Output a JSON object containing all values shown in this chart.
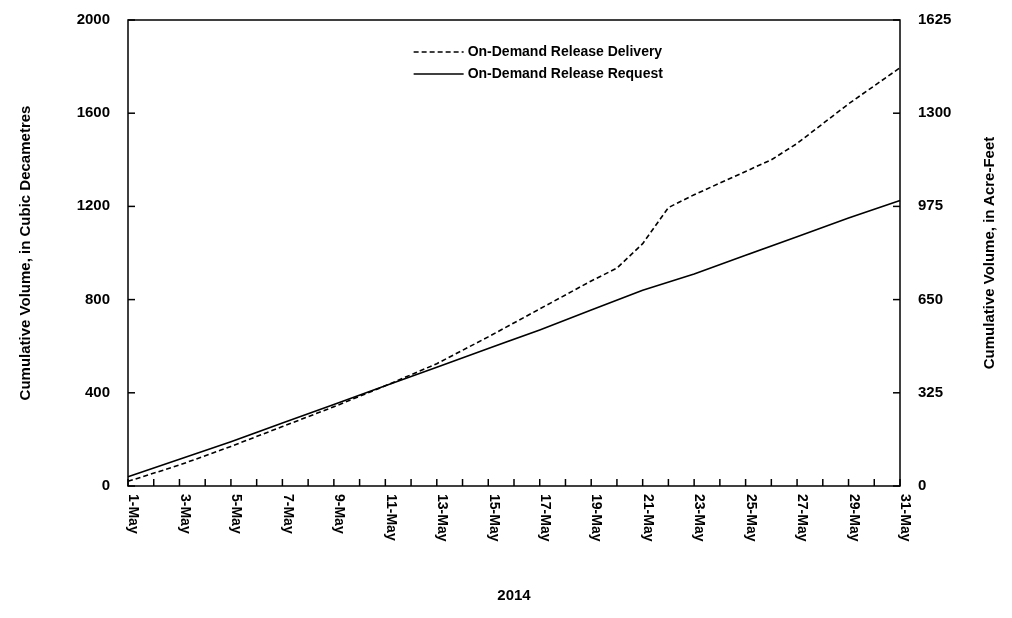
{
  "chart_data": {
    "type": "line",
    "xlabel": "2014",
    "ylabel": "Cumulative Volume, in Cubic Decametres",
    "y2label": "Cumulative Volume, in Acre-Feet",
    "xlim": [
      "2014-05-01",
      "2014-05-31"
    ],
    "xticks": [
      {
        "value": "2014-05-01",
        "label": "1-May"
      },
      {
        "value": "2014-05-02",
        "label": null
      },
      {
        "value": "2014-05-03",
        "label": "3-May"
      },
      {
        "value": "2014-05-04",
        "label": null
      },
      {
        "value": "2014-05-05",
        "label": "5-May"
      },
      {
        "value": "2014-05-06",
        "label": null
      },
      {
        "value": "2014-05-07",
        "label": "7-May"
      },
      {
        "value": "2014-05-08",
        "label": null
      },
      {
        "value": "2014-05-09",
        "label": "9-May"
      },
      {
        "value": "2014-05-10",
        "label": null
      },
      {
        "value": "2014-05-11",
        "label": "11-May"
      },
      {
        "value": "2014-05-12",
        "label": null
      },
      {
        "value": "2014-05-13",
        "label": "13-May"
      },
      {
        "value": "2014-05-14",
        "label": null
      },
      {
        "value": "2014-05-15",
        "label": "15-May"
      },
      {
        "value": "2014-05-16",
        "label": null
      },
      {
        "value": "2014-05-17",
        "label": "17-May"
      },
      {
        "value": "2014-05-18",
        "label": null
      },
      {
        "value": "2014-05-19",
        "label": "19-May"
      },
      {
        "value": "2014-05-20",
        "label": null
      },
      {
        "value": "2014-05-21",
        "label": "21-May"
      },
      {
        "value": "2014-05-22",
        "label": null
      },
      {
        "value": "2014-05-23",
        "label": "23-May"
      },
      {
        "value": "2014-05-24",
        "label": null
      },
      {
        "value": "2014-05-25",
        "label": "25-May"
      },
      {
        "value": "2014-05-26",
        "label": null
      },
      {
        "value": "2014-05-27",
        "label": "27-May"
      },
      {
        "value": "2014-05-28",
        "label": null
      },
      {
        "value": "2014-05-29",
        "label": "29-May"
      },
      {
        "value": "2014-05-30",
        "label": null
      },
      {
        "value": "2014-05-31",
        "label": "31-May"
      }
    ],
    "ylim": [
      0,
      2000
    ],
    "yticks": [
      0,
      400,
      800,
      1200,
      1600,
      2000
    ],
    "y2lim": [
      0,
      1625
    ],
    "y2ticks": [
      0,
      325,
      650,
      975,
      1300,
      1625
    ],
    "legend": "top",
    "grid": false,
    "marker": "none",
    "series": [
      {
        "name": "On-Demand Release Delivery",
        "color": "#000000",
        "line_style": "dashed",
        "x": [
          "2014-05-01",
          "2014-05-03",
          "2014-05-05",
          "2014-05-07",
          "2014-05-09",
          "2014-05-11",
          "2014-05-13",
          "2014-05-15",
          "2014-05-17",
          "2014-05-19",
          "2014-05-20",
          "2014-05-21",
          "2014-05-22",
          "2014-05-23",
          "2014-05-25",
          "2014-05-26",
          "2014-05-27",
          "2014-05-29",
          "2014-05-31"
        ],
        "values": [
          20,
          90,
          170,
          255,
          340,
          430,
          525,
          640,
          760,
          880,
          935,
          1040,
          1195,
          1250,
          1350,
          1400,
          1470,
          1640,
          1795
        ]
      },
      {
        "name": "On-Demand Release Request",
        "color": "#000000",
        "line_style": "solid",
        "x": [
          "2014-05-01",
          "2014-05-03",
          "2014-05-05",
          "2014-05-07",
          "2014-05-09",
          "2014-05-11",
          "2014-05-13",
          "2014-05-15",
          "2014-05-17",
          "2014-05-19",
          "2014-05-21",
          "2014-05-23",
          "2014-05-25",
          "2014-05-27",
          "2014-05-29",
          "2014-05-31"
        ],
        "values": [
          40,
          115,
          190,
          270,
          350,
          430,
          510,
          590,
          670,
          755,
          840,
          910,
          990,
          1070,
          1150,
          1225
        ]
      }
    ]
  }
}
